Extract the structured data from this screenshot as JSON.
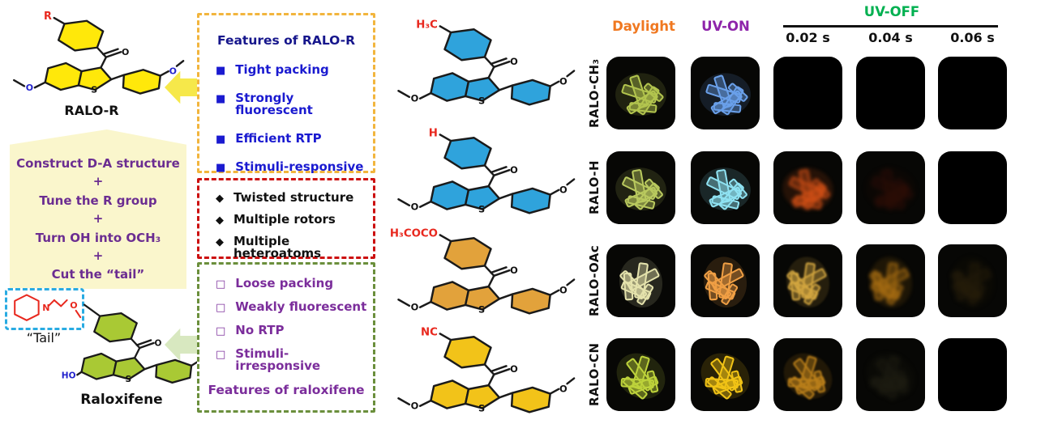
{
  "left_panel": {
    "ralo_r_label": "RALO-R",
    "strategy_lines": [
      "Construct D-A structure",
      "+",
      "Tune the R group",
      "+",
      "Turn OH into OCH₃",
      "+",
      "Cut the “tail”"
    ],
    "tail_label": "“Tail”",
    "raloxifene_label": "Raloxifene"
  },
  "feature_boxes": {
    "ralo": {
      "title": "Features of RALO-R",
      "items": [
        "Tight packing",
        "Strongly fluorescent",
        "Efficient RTP",
        "Stimuli-responsive"
      ],
      "border_color": "#F2B53D",
      "title_color": "#16168C",
      "item_color": "#1A1AD0"
    },
    "core": {
      "items": [
        "Twisted structure",
        "Multiple rotors",
        "Multiple heteroatoms"
      ],
      "border_color": "#CC1010",
      "item_color": "#111111"
    },
    "raloxifene": {
      "title": "Features of raloxifene",
      "items": [
        "Loose packing",
        "Weakly fluorescent",
        "No RTP",
        "Stimuli-irresponsive"
      ],
      "border_color": "#6B8F3C",
      "item_color": "#7B2D9B",
      "title_color": "#7B2D9B"
    }
  },
  "molecules": {
    "atom_labels": {
      "s": "S",
      "o": "O",
      "n": "N",
      "ho": "HO",
      "oh": "OH",
      "r": "R"
    },
    "sub_color": "#E8281E",
    "ralo_r": {
      "substituent": "R",
      "ring_fill": "#FFE80A",
      "o_color": "#2222CC"
    },
    "middle": [
      {
        "substituent": "H₃C",
        "ring_fill": "#2FA3DC"
      },
      {
        "substituent": "H",
        "ring_fill": "#2FA3DC"
      },
      {
        "substituent": "H₃COCO",
        "ring_fill": "#E2A23B"
      },
      {
        "substituent": "NC",
        "ring_fill": "#F2C319"
      }
    ],
    "raloxifene": {
      "ring_fill": "#A9C934",
      "o_color": "#2222CC"
    }
  },
  "photo_grid": {
    "headers": [
      {
        "label": "Daylight",
        "color": "#F07820"
      },
      {
        "label": "UV-ON",
        "color": "#8E24AA"
      },
      {
        "label": "UV-OFF",
        "color": "#00B050"
      }
    ],
    "times": [
      "0.02 s",
      "0.04 s",
      "0.06 s"
    ],
    "rows": [
      {
        "label": "RALO-CH₃",
        "rot": 0,
        "cells": [
          {
            "on": 1,
            "color": "#b2c44e",
            "op": 1,
            "blur": 0
          },
          {
            "on": 1,
            "color": "#6aa0ea",
            "op": 1,
            "blur": 0
          },
          {
            "on": 0
          },
          {
            "on": 0
          },
          {
            "on": 0
          }
        ]
      },
      {
        "label": "RALO-H",
        "rot": 8,
        "cells": [
          {
            "on": 1,
            "color": "#b9c95e",
            "op": 1,
            "blur": 0
          },
          {
            "on": 1,
            "color": "#8fe2f2",
            "op": 1,
            "blur": 0
          },
          {
            "on": 1,
            "color": "#dd5418",
            "op": 0.95,
            "blur": 2
          },
          {
            "on": 1,
            "color": "#801c0a",
            "op": 0.3,
            "blur": 3
          },
          {
            "on": 0
          }
        ]
      },
      {
        "label": "RALO-OAc",
        "rot": 80,
        "cells": [
          {
            "on": 1,
            "color": "#e4e2ac",
            "op": 1,
            "blur": 0
          },
          {
            "on": 1,
            "color": "#f09f44",
            "op": 1,
            "blur": 0
          },
          {
            "on": 1,
            "color": "#e0b044",
            "op": 0.95,
            "blur": 1
          },
          {
            "on": 1,
            "color": "#cd8516",
            "op": 0.8,
            "blur": 2
          },
          {
            "on": 1,
            "color": "#4a3610",
            "op": 0.45,
            "blur": 3
          }
        ]
      },
      {
        "label": "RALO-CN",
        "rot": 35,
        "cells": [
          {
            "on": 1,
            "color": "#bdd23b",
            "op": 1,
            "blur": 0
          },
          {
            "on": 1,
            "color": "#f1c316",
            "op": 1,
            "blur": 0
          },
          {
            "on": 1,
            "color": "#cf8d1d",
            "op": 0.9,
            "blur": 1
          },
          {
            "on": 1,
            "color": "#35331f",
            "op": 0.5,
            "blur": 3
          },
          {
            "on": 0
          }
        ]
      }
    ]
  }
}
